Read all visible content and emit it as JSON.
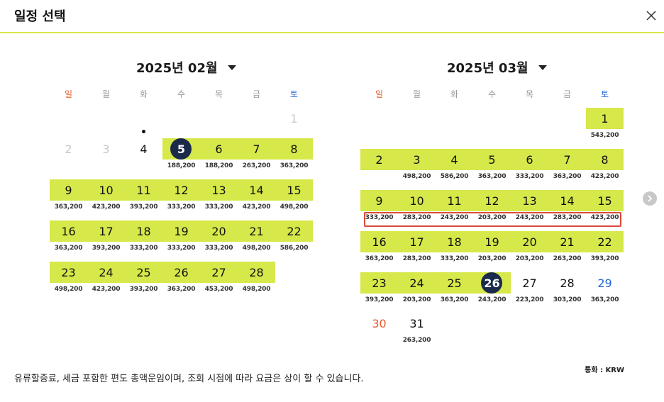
{
  "header": {
    "title": "일정 선택",
    "close_icon": "close-icon"
  },
  "weekdays": [
    "일",
    "월",
    "화",
    "수",
    "목",
    "금",
    "토"
  ],
  "months": [
    {
      "label": "2025년 02월",
      "days": [
        {
          "d": "1",
          "price": "",
          "state": "disabled"
        },
        {
          "d": "2",
          "price": "",
          "state": "disabled"
        },
        {
          "d": "3",
          "price": "",
          "state": "disabled"
        },
        {
          "d": "4",
          "price": "",
          "state": "today"
        },
        {
          "d": "5",
          "price": "188,200",
          "state": "selected"
        },
        {
          "d": "6",
          "price": "188,200",
          "state": "available"
        },
        {
          "d": "7",
          "price": "263,200",
          "state": "available"
        },
        {
          "d": "8",
          "price": "363,200",
          "state": "available"
        },
        {
          "d": "9",
          "price": "363,200",
          "state": "available"
        },
        {
          "d": "10",
          "price": "423,200",
          "state": "available"
        },
        {
          "d": "11",
          "price": "393,200",
          "state": "available"
        },
        {
          "d": "12",
          "price": "333,200",
          "state": "available"
        },
        {
          "d": "13",
          "price": "333,200",
          "state": "available"
        },
        {
          "d": "14",
          "price": "423,200",
          "state": "available"
        },
        {
          "d": "15",
          "price": "498,200",
          "state": "available"
        },
        {
          "d": "16",
          "price": "363,200",
          "state": "available"
        },
        {
          "d": "17",
          "price": "393,200",
          "state": "available"
        },
        {
          "d": "18",
          "price": "333,200",
          "state": "available"
        },
        {
          "d": "19",
          "price": "333,200",
          "state": "available"
        },
        {
          "d": "20",
          "price": "333,200",
          "state": "available"
        },
        {
          "d": "21",
          "price": "498,200",
          "state": "available"
        },
        {
          "d": "22",
          "price": "586,200",
          "state": "available"
        },
        {
          "d": "23",
          "price": "498,200",
          "state": "available"
        },
        {
          "d": "24",
          "price": "423,200",
          "state": "available"
        },
        {
          "d": "25",
          "price": "393,200",
          "state": "available"
        },
        {
          "d": "26",
          "price": "363,200",
          "state": "available"
        },
        {
          "d": "27",
          "price": "453,200",
          "state": "available"
        },
        {
          "d": "28",
          "price": "498,200",
          "state": "available"
        }
      ]
    },
    {
      "label": "2025년 03월",
      "days": [
        {
          "d": "1",
          "price": "543,200",
          "state": "available"
        },
        {
          "d": "2",
          "price": "",
          "state": "available"
        },
        {
          "d": "3",
          "price": "498,200",
          "state": "available"
        },
        {
          "d": "4",
          "price": "586,200",
          "state": "available"
        },
        {
          "d": "5",
          "price": "363,200",
          "state": "available"
        },
        {
          "d": "6",
          "price": "333,200",
          "state": "available"
        },
        {
          "d": "7",
          "price": "363,200",
          "state": "available"
        },
        {
          "d": "8",
          "price": "423,200",
          "state": "available"
        },
        {
          "d": "9",
          "price": "333,200",
          "state": "available"
        },
        {
          "d": "10",
          "price": "283,200",
          "state": "available"
        },
        {
          "d": "11",
          "price": "243,200",
          "state": "available"
        },
        {
          "d": "12",
          "price": "203,200",
          "state": "available"
        },
        {
          "d": "13",
          "price": "243,200",
          "state": "available"
        },
        {
          "d": "14",
          "price": "283,200",
          "state": "available"
        },
        {
          "d": "15",
          "price": "423,200",
          "state": "available"
        },
        {
          "d": "16",
          "price": "363,200",
          "state": "available"
        },
        {
          "d": "17",
          "price": "283,200",
          "state": "available"
        },
        {
          "d": "18",
          "price": "333,200",
          "state": "available"
        },
        {
          "d": "19",
          "price": "203,200",
          "state": "available"
        },
        {
          "d": "20",
          "price": "203,200",
          "state": "available"
        },
        {
          "d": "21",
          "price": "263,200",
          "state": "available"
        },
        {
          "d": "22",
          "price": "393,200",
          "state": "available"
        },
        {
          "d": "23",
          "price": "393,200",
          "state": "available"
        },
        {
          "d": "24",
          "price": "203,200",
          "state": "available"
        },
        {
          "d": "25",
          "price": "363,200",
          "state": "available"
        },
        {
          "d": "26",
          "price": "243,200",
          "state": "selected"
        },
        {
          "d": "27",
          "price": "223,200",
          "state": "plain"
        },
        {
          "d": "28",
          "price": "303,200",
          "state": "plain"
        },
        {
          "d": "29",
          "price": "363,200",
          "state": "plain"
        },
        {
          "d": "30",
          "price": "",
          "state": "plain"
        },
        {
          "d": "31",
          "price": "263,200",
          "state": "plain"
        }
      ]
    }
  ],
  "footer": {
    "currency": "통화 : KRW",
    "notice": "유류할증료, 세금 포함한 편도 총액운임이며, 조회 시점에 따라 요금은 상이 할 수 있습니다."
  },
  "colors": {
    "band": "#d7e84a",
    "selected": "#1b2a4a",
    "sunday": "#e85a2c",
    "saturday": "#2467d8",
    "highlight": "#d94a3a"
  }
}
